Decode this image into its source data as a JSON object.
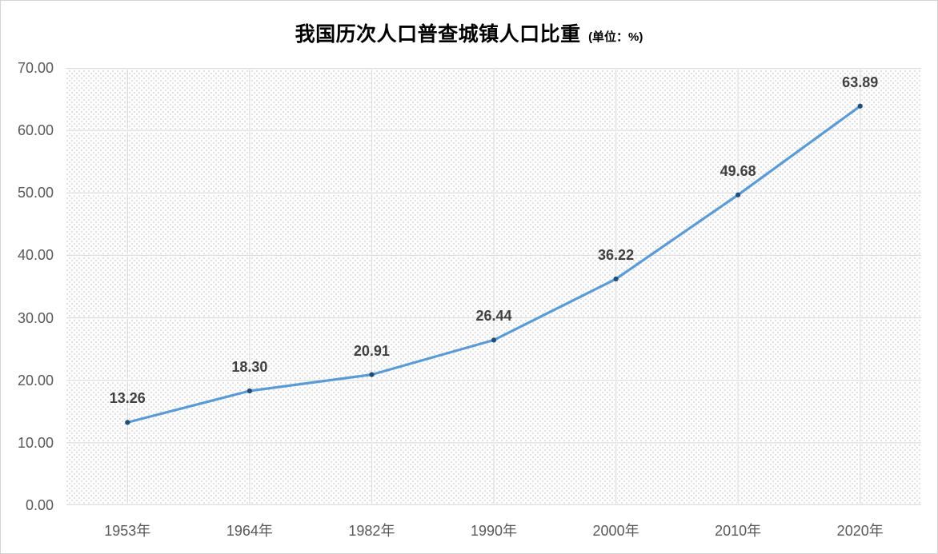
{
  "chart_data": {
    "type": "line",
    "title": "我国历次人口普查城镇人口比重",
    "unit": "(单位：%)",
    "categories": [
      "1953年",
      "1964年",
      "1982年",
      "1990年",
      "2000年",
      "2010年",
      "2020年"
    ],
    "values": [
      13.26,
      18.3,
      20.91,
      26.44,
      36.22,
      49.68,
      63.89
    ],
    "data_labels": [
      "13.26",
      "18.30",
      "20.91",
      "26.44",
      "36.22",
      "49.68",
      "63.89"
    ],
    "y_ticks": [
      "0.00",
      "10.00",
      "20.00",
      "30.00",
      "40.00",
      "50.00",
      "60.00",
      "70.00"
    ],
    "ylim": [
      0,
      70
    ],
    "xlabel": "",
    "ylabel": "",
    "grid": true,
    "legend": "none",
    "colors": {
      "line": "#5B9BD5",
      "marker": "#1F4E79",
      "grid": "#DCDCDC",
      "grid_casing": "#FFFFFF",
      "pattern_dot": "#E0E0E0",
      "data_label_text": "#404040",
      "axis_text": "#595959",
      "title_text": "#000000"
    }
  }
}
